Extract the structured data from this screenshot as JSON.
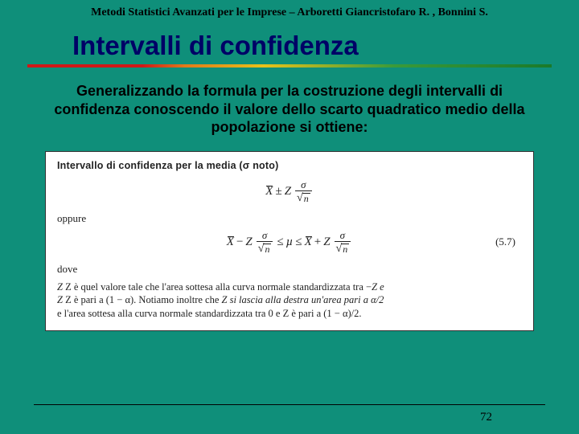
{
  "colors": {
    "slide_bg": "#0f8f7a",
    "title_color": "#000066",
    "header_color": "#000000",
    "body_color": "#000000",
    "rule_gradient": [
      "#d01818",
      "#e07a1a",
      "#e8c21a",
      "#3a9a3a",
      "#1a7a2a"
    ]
  },
  "header": {
    "text": "Metodi Statistici Avanzati per le Imprese – Arboretti Giancristofaro R. , Bonnini S.",
    "font_size": 14,
    "font_weight": "bold"
  },
  "title": {
    "text": "Intervalli di confidenza",
    "font_size": 33,
    "font_family": "Arial"
  },
  "body": {
    "text": "Generalizzando la formula per la costruzione degli intervalli di confidenza conoscendo il valore dello scarto quadratico medio della popolazione si ottiene:",
    "font_size": 18
  },
  "formula_box": {
    "title_prefix": "Intervallo di confidenza per la media (",
    "title_sigma": "σ",
    "title_suffix": " noto)",
    "oppure": "oppure",
    "dove": "dove",
    "eq_number": "(5.7)",
    "explain_line1_a": "Z è quel valore tale che l'area sottesa alla curva normale standardizzata tra −",
    "explain_line1_b": "Z e",
    "explain_line2_a": "Z è pari a (1 − α). Notiamo inoltre che ",
    "explain_line2_b": "Z si lascia alla destra un'area pari a α/2",
    "explain_line3": "e l'area sottesa alla curva normale standardizzata tra 0 e Z è pari a (1 − α)/2.",
    "symbols": {
      "xbar": "X",
      "Z": "Z",
      "sigma": "σ",
      "mu": "µ",
      "n": "n",
      "pm": "±",
      "leq": "≤",
      "minus": "−",
      "plus": "+"
    }
  },
  "page_number": "72"
}
